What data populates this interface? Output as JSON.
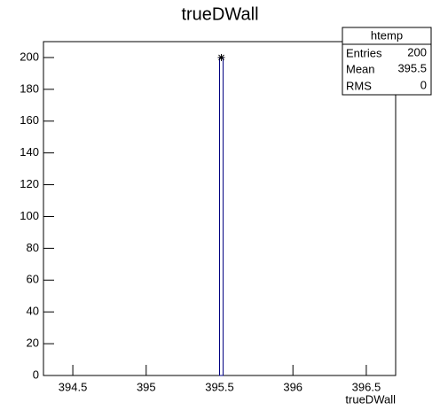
{
  "chart_data": {
    "type": "histogram",
    "title": "trueDWall",
    "x_label": "trueDWall",
    "bins": [
      395.5,
      395.524
    ],
    "values": [
      200
    ],
    "color": "#000080",
    "marker_color": "#000000",
    "xlim": [
      394.3,
      396.7
    ],
    "xticks": [
      394.5,
      395,
      395.5,
      396,
      396.5
    ],
    "ylim": [
      0,
      210
    ],
    "yticks": [
      0,
      20,
      40,
      60,
      80,
      100,
      120,
      140,
      160,
      180,
      200
    ],
    "stats": {
      "title": "htemp",
      "labels": [
        "Entries",
        "Mean",
        "RMS"
      ],
      "values": [
        200,
        395.5,
        0
      ]
    }
  }
}
